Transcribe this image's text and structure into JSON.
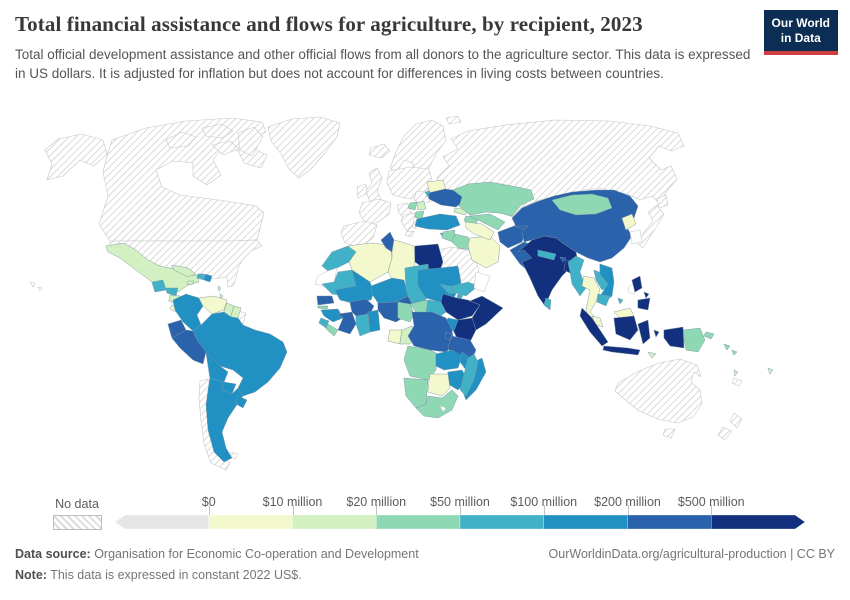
{
  "header": {
    "title": "Total financial assistance and flows for agriculture, by recipient, 2023",
    "subtitle": "Total official development assistance and other official flows from all donors to the agriculture sector. This data is expressed in US dollars. It is adjusted for inflation but does not account for differences in living costs between countries.",
    "logo": {
      "line1": "Our World",
      "line2": "in Data",
      "bg_color": "#0d2e54",
      "accent_color": "#cf3e3e"
    }
  },
  "legend": {
    "no_data_label": "No data",
    "tick_labels": [
      "$0",
      "$10 million",
      "$20 million",
      "$50 million",
      "$100 million",
      "$200 million",
      "$500 million"
    ]
  },
  "footer": {
    "source_label": "Data source:",
    "source_text": " Organisation for Economic Co-operation and Development",
    "note_label": "Note:",
    "note_text": " This data is expressed in constant 2022 US$.",
    "link_text": "OurWorldinData.org/agricultural-production | CC BY"
  },
  "chart_data": {
    "type": "choropleth_map",
    "title": "Total financial assistance and flows for agriculture, by recipient, 2023",
    "unit": "constant 2022 US$",
    "legend_position": "bottom",
    "bins": [
      {
        "id": "nodata",
        "range": "No data",
        "style": "hatch",
        "color": "#ffffff"
      },
      {
        "id": "b0",
        "range": "below $0",
        "color": "#e6e6e6"
      },
      {
        "id": "b1",
        "range": "$0 - $10 million",
        "color": "#f3f9cc"
      },
      {
        "id": "b2",
        "range": "$10 - $20 million",
        "color": "#d3f0c2"
      },
      {
        "id": "b3",
        "range": "$20 - $50 million",
        "color": "#8fd8b4"
      },
      {
        "id": "b4",
        "range": "$50 - $100 million",
        "color": "#41b1c8"
      },
      {
        "id": "b5",
        "range": "$100 - $200 million",
        "color": "#2191c4"
      },
      {
        "id": "b6",
        "range": "$200 - $500 million",
        "color": "#2a62ac"
      },
      {
        "id": "b7",
        "range": "above $500 million",
        "color": "#12307e"
      }
    ],
    "countries": {
      "canada": "nodata",
      "usa": "nodata",
      "alaska": "nodata",
      "greenland": "nodata",
      "arctic-archipelago": "nodata",
      "hawaii": "nodata",
      "russia": "nodata",
      "scandinavia": "nodata",
      "iceland": "nodata",
      "svalbard": "nodata",
      "ireland": "nodata",
      "uk": "nodata",
      "france": "nodata",
      "iberia": "nodata",
      "germany-central-europe": "nodata",
      "italy": "nodata",
      "romania": "nodata",
      "greece": "nodata",
      "saudi-arabia": "nodata",
      "japan": "nodata",
      "australia": "nodata",
      "new-zealand": "nodata",
      "new-caledonia": "nodata",
      "chile": "nodata",
      "french-guiana": "nodata",
      "falkland-islands": "nodata",
      "venezuela": "b1",
      "costa-rica": "b1",
      "panama": "b1",
      "algeria": "b1",
      "libya": "b1",
      "gabon": "b1",
      "botswana": "b1",
      "belarus": "b1",
      "iran": "b1",
      "turkmenistan": "b1",
      "thailand": "b1",
      "malaysia": "b1",
      "north-korea": "b1",
      "mexico": "b2",
      "cuba": "b2",
      "jamaica": "b2",
      "nicaragua": "b2",
      "guyana": "b2",
      "suriname": "b2",
      "serbia": "b2",
      "congo": "b2",
      "georgia": "b2",
      "lesser-antilles": "b2",
      "trinidad": "b2",
      "vanuatu": "b2",
      "fiji": "b2",
      "timor": "b2",
      "liberia": "b3",
      "gambia": "b3",
      "cameroon": "b3",
      "central-african-republic": "b3",
      "bosnia": "b3",
      "albania-macedonia": "b3",
      "syria": "b3",
      "iraq": "b3",
      "uzbekistan": "b3",
      "kazakhstan": "b3",
      "kyrgyzstan": "b3",
      "mongolia": "b3",
      "papua-new-guinea": "b3",
      "solomon-islands": "b3",
      "south-africa": "b3",
      "namibia": "b3",
      "angola": "b3",
      "azerbaijan-armenia": "b3",
      "morocco": "b4",
      "mauritania": "b4",
      "sierra-leone": "b4",
      "ghana": "b4",
      "chad": "b4",
      "south-sudan": "b4",
      "eritrea": "b4",
      "djibouti": "b4",
      "madagascar": "b4",
      "yemen": "b4",
      "moldova": "b4",
      "nepal": "b4",
      "sri-lanka": "b4",
      "myanmar": "b4",
      "laos": "b4",
      "cambodia": "b4",
      "hainan": "b4",
      "guatemala": "b4",
      "honduras": "b4",
      "haiti": "b4",
      "cyprus": "b4",
      "colombia": "b5",
      "brazil": "b5",
      "bolivia": "b5",
      "paraguay": "b5",
      "argentina": "b5",
      "uruguay": "b5",
      "dominican-republic": "b5",
      "mali": "b5",
      "niger": "b5",
      "sudan": "b5",
      "guinea": "b5",
      "togo-benin": "b5",
      "uganda": "b5",
      "zambia": "b5",
      "malawi": "b5",
      "mozambique": "b5",
      "zimbabwe": "b5",
      "turkey": "b5",
      "vietnam": "b5",
      "ecuador": "b6",
      "peru": "b6",
      "senegal": "b6",
      "cote-divoire": "b6",
      "burkina-faso": "b6",
      "nigeria": "b6",
      "dr-congo": "b6",
      "tanzania": "b6",
      "rwanda-burundi": "b6",
      "tunisia": "b6",
      "ukraine": "b6",
      "china": "b6",
      "afghanistan": "b6",
      "pakistan": "b6",
      "tajikistan": "b6",
      "bhutan": "b6",
      "egypt": "b7",
      "ethiopia": "b7",
      "somalia": "b7",
      "kenya": "b7",
      "india": "b7",
      "bangladesh": "b7",
      "indonesia": "b7",
      "philippines": "b7"
    }
  }
}
